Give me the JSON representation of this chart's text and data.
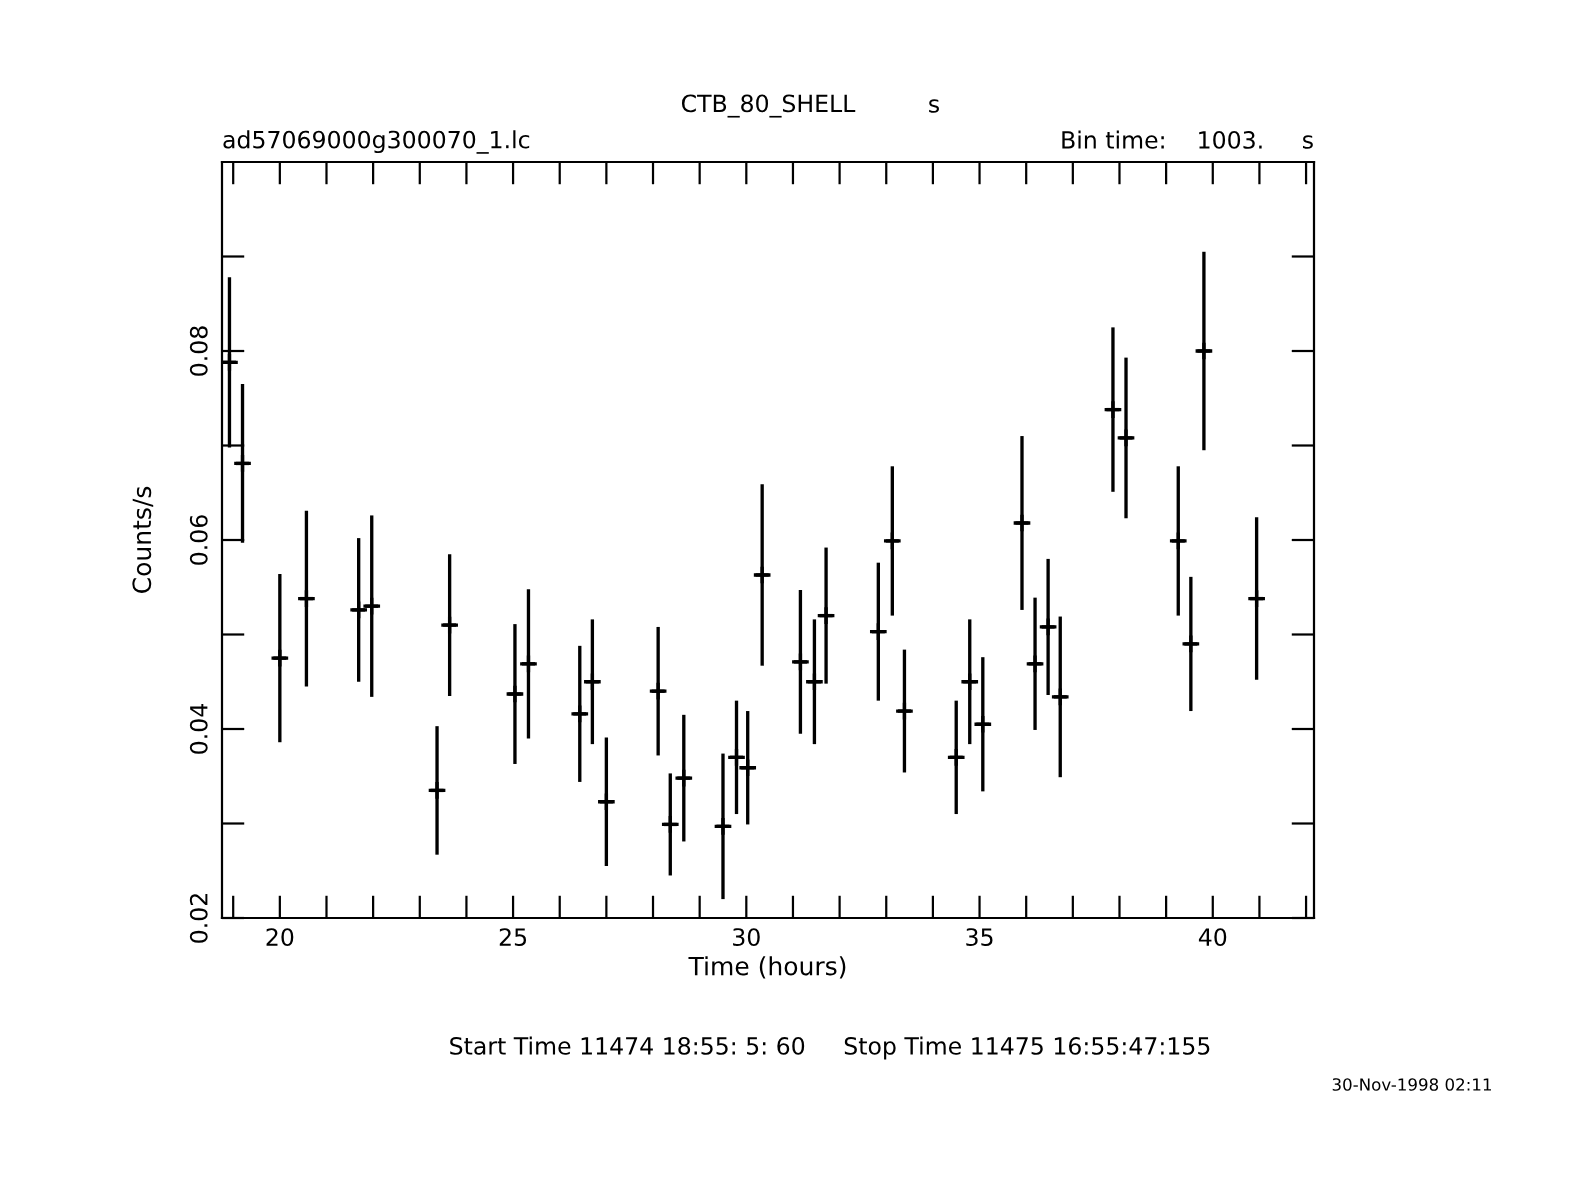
{
  "chart_data": {
    "type": "scatter",
    "title": "CTB_80_SHELL",
    "xlabel": "Time (hours)",
    "ylabel": "Counts/s",
    "annotations": [
      "s",
      "ad57069000g300070_1.lc",
      "Bin time:    1003.     s",
      "Start Time 11474 18:55: 5: 60     Stop Time 11475 16:55:47:155",
      "30-Nov-1998 02:11"
    ],
    "series": [
      {
        "color": "#000000",
        "x": [
          18.92,
          19.2,
          20.0,
          20.57,
          21.69,
          21.97,
          23.37,
          23.64,
          25.04,
          25.33,
          26.43,
          26.7,
          27.0,
          28.11,
          28.37,
          28.66,
          29.5,
          29.79,
          30.03,
          30.34,
          31.16,
          31.46,
          31.71,
          32.83,
          33.13,
          33.39,
          34.5,
          34.79,
          35.07,
          35.91,
          36.19,
          36.47,
          36.73,
          37.86,
          38.14,
          39.26,
          39.53,
          39.81,
          40.94
        ],
        "values": [
          0.0788,
          0.0681,
          0.0475,
          0.0538,
          0.0526,
          0.053,
          0.0335,
          0.051,
          0.0437,
          0.0469,
          0.0416,
          0.045,
          0.0323,
          0.044,
          0.0299,
          0.0348,
          0.0297,
          0.037,
          0.0359,
          0.0563,
          0.0471,
          0.045,
          0.052,
          0.0503,
          0.0599,
          0.0419,
          0.037,
          0.045,
          0.0405,
          0.0618,
          0.0469,
          0.0508,
          0.0434,
          0.0738,
          0.0708,
          0.0599,
          0.049,
          0.08,
          0.0538
        ],
        "errors": [
          0.009,
          0.0084,
          0.0089,
          0.0093,
          0.0076,
          0.0096,
          0.0068,
          0.0075,
          0.0074,
          0.0079,
          0.0072,
          0.0066,
          0.0068,
          0.0068,
          0.0054,
          0.0067,
          0.0077,
          0.006,
          0.006,
          0.0096,
          0.0076,
          0.0066,
          0.0072,
          0.0073,
          0.0079,
          0.0065,
          0.006,
          0.0066,
          0.0071,
          0.0092,
          0.007,
          0.0072,
          0.0085,
          0.0087,
          0.0085,
          0.0079,
          0.0071,
          0.0105,
          0.0086
        ],
        "xerrors": [
          0.14,
          0.14,
          0.14,
          0.14,
          0.14,
          0.14,
          0.14,
          0.14,
          0.14,
          0.14,
          0.14,
          0.14,
          0.14,
          0.14,
          0.14,
          0.14,
          0.14,
          0.14,
          0.14,
          0.14,
          0.14,
          0.14,
          0.14,
          0.14,
          0.14,
          0.14,
          0.14,
          0.14,
          0.14,
          0.14,
          0.14,
          0.14,
          0.14,
          0.14,
          0.14,
          0.14,
          0.14,
          0.14,
          0.14
        ]
      }
    ],
    "marker": "cross",
    "grid": false,
    "legend": false,
    "xlim": [
      18.76,
      42.17
    ],
    "ylim": [
      0.02,
      0.1
    ],
    "xticks": [
      {
        "value": 19,
        "label": null
      },
      20,
      {
        "value": 21,
        "label": null
      },
      {
        "value": 22,
        "label": null
      },
      {
        "value": 23,
        "label": null
      },
      {
        "value": 24,
        "label": null
      },
      25,
      {
        "value": 26,
        "label": null
      },
      {
        "value": 27,
        "label": null
      },
      {
        "value": 28,
        "label": null
      },
      {
        "value": 29,
        "label": null
      },
      30,
      {
        "value": 31,
        "label": null
      },
      {
        "value": 32,
        "label": null
      },
      {
        "value": 33,
        "label": null
      },
      {
        "value": 34,
        "label": null
      },
      35,
      {
        "value": 36,
        "label": null
      },
      {
        "value": 37,
        "label": null
      },
      {
        "value": 38,
        "label": null
      },
      {
        "value": 39,
        "label": null
      },
      40,
      {
        "value": 41,
        "label": null
      },
      {
        "value": 42,
        "label": null
      }
    ],
    "yticks": [
      0.02,
      {
        "value": 0.03,
        "label": null
      },
      0.04,
      {
        "value": 0.05,
        "label": null
      },
      0.06,
      {
        "value": 0.07,
        "label": null
      },
      0.08,
      {
        "value": 0.09,
        "label": null
      }
    ]
  }
}
